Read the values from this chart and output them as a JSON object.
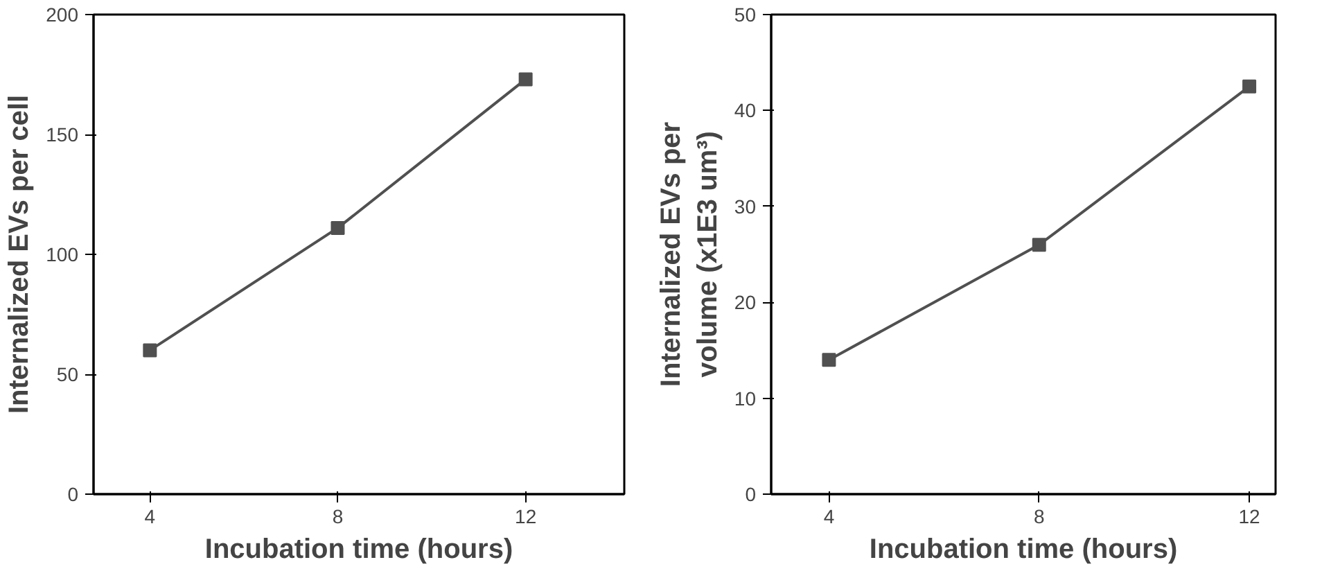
{
  "chart_data": [
    {
      "type": "line",
      "xlabel": "Incubation time (hours)",
      "ylabel": "Internalized EVs per cell",
      "x": [
        4,
        8,
        12
      ],
      "series": [
        {
          "color": "#505050",
          "values": [
            60,
            111,
            173
          ]
        }
      ],
      "xlim": [
        2.8,
        14.1
      ],
      "xticks": [
        4,
        8,
        12
      ],
      "ylim": [
        0,
        200
      ],
      "yticks": [
        0,
        50,
        100,
        150,
        200
      ],
      "grid": false,
      "marker": "square",
      "line_style": "solid"
    },
    {
      "type": "line",
      "xlabel": "Incubation time (hours)",
      "ylabel": "Internalized EVs per\nvolume (x1E3 um³)",
      "x": [
        4,
        8,
        12
      ],
      "series": [
        {
          "color": "#505050",
          "values": [
            14,
            26,
            42.5
          ]
        }
      ],
      "xlim": [
        2.9,
        12.5
      ],
      "xticks": [
        4,
        8,
        12
      ],
      "ylim": [
        0,
        50
      ],
      "yticks": [
        0,
        10,
        20,
        30,
        40,
        50
      ],
      "grid": false,
      "marker": "square",
      "line_style": "solid"
    }
  ]
}
